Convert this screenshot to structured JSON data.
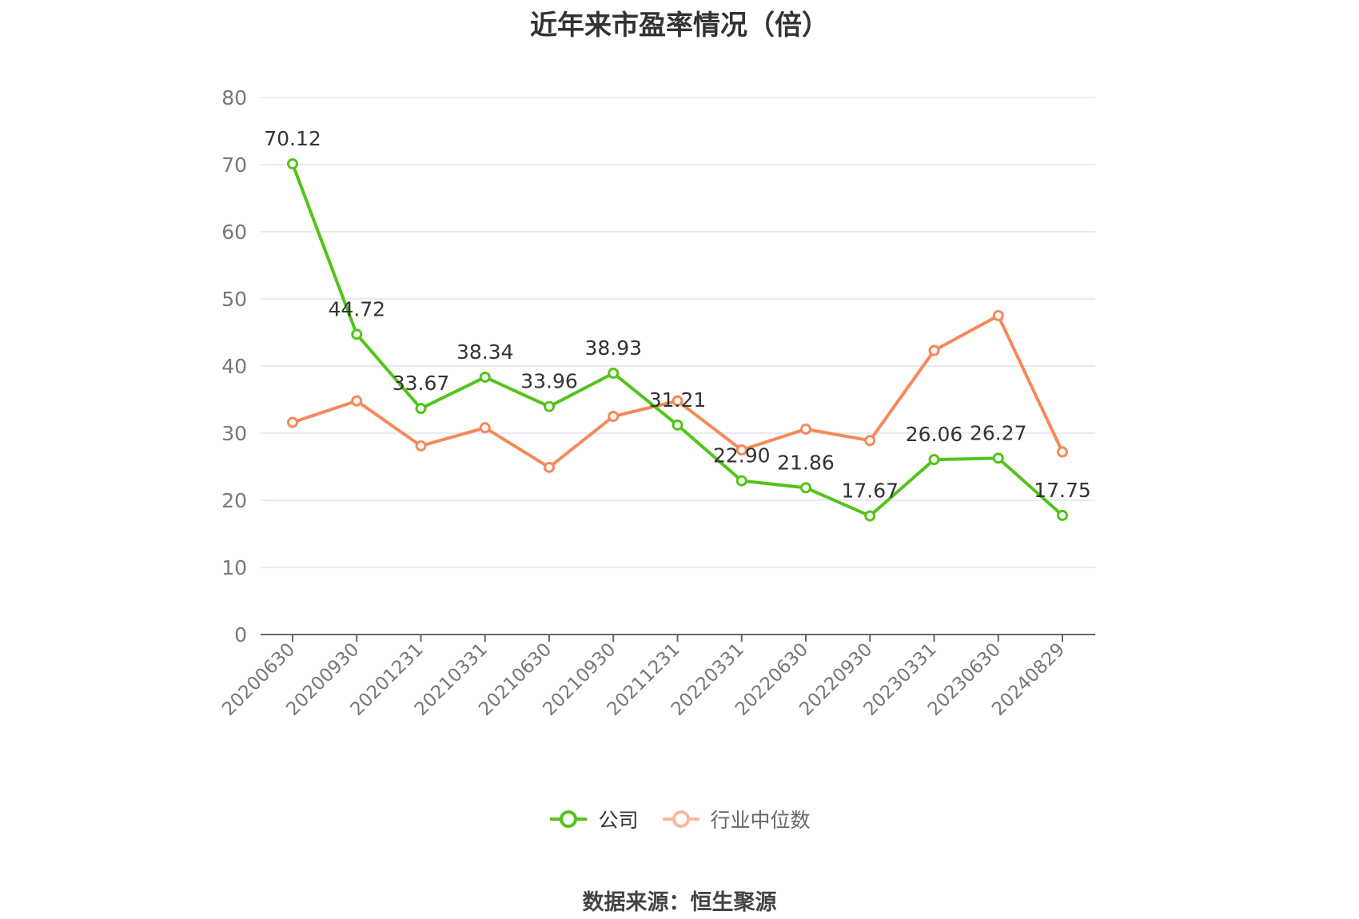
{
  "chart_data": {
    "type": "line",
    "title": "近年来市盈率情况（倍）",
    "categories": [
      "20200630",
      "20200930",
      "20201231",
      "20210331",
      "20210630",
      "20210930",
      "20211231",
      "20220331",
      "20220630",
      "20220930",
      "20230331",
      "20230630",
      "20240829"
    ],
    "series": [
      {
        "name": "公司",
        "color": "#52c41a",
        "values": [
          70.12,
          44.72,
          33.67,
          38.34,
          33.96,
          38.93,
          31.21,
          22.9,
          21.86,
          17.67,
          26.06,
          26.27,
          17.75
        ],
        "labels": [
          "70.12",
          "44.72",
          "33.67",
          "38.34",
          "33.96",
          "38.93",
          "31.21",
          "22.90",
          "21.86",
          "17.67",
          "26.06",
          "26.27",
          "17.75"
        ]
      },
      {
        "name": "行业中位数",
        "color": "#f5895a",
        "values": [
          31.6,
          34.8,
          28.1,
          30.8,
          24.9,
          32.5,
          34.8,
          27.5,
          30.6,
          28.9,
          42.3,
          47.5,
          27.2
        ]
      }
    ],
    "ylim": [
      0,
      80
    ],
    "yticks": [
      "0",
      "10",
      "20",
      "30",
      "40",
      "50",
      "60",
      "70",
      "80"
    ],
    "grid": true,
    "legend_position": "bottom-center"
  },
  "legend": {
    "company": "公司",
    "median": "行业中位数"
  },
  "source": "数据来源：恒生聚源"
}
